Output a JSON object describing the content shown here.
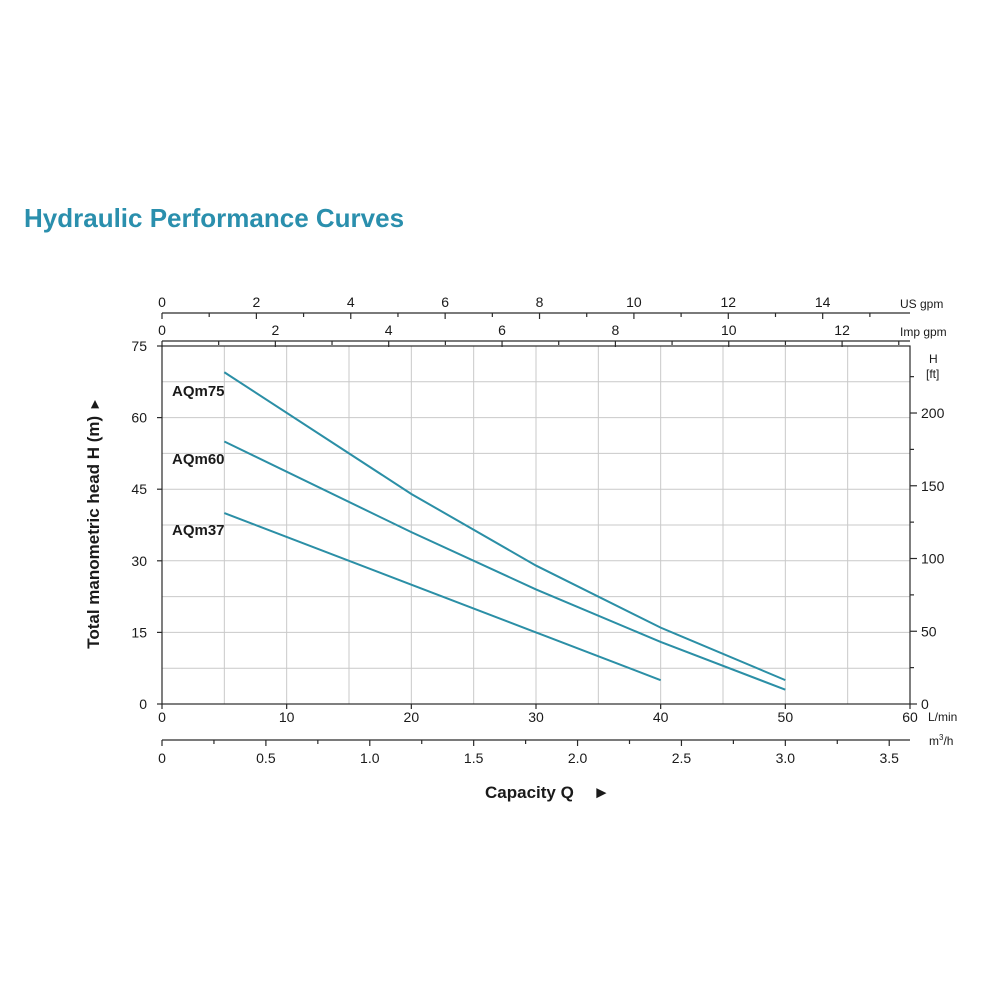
{
  "title": "Hydraulic Performance Curves",
  "colors": {
    "title": "#2a8fad",
    "curve": "#2b8fa6",
    "grid": "#c9c9c9",
    "axis": "#2a2a2a"
  },
  "chart_data": {
    "type": "line",
    "title": "",
    "xlabel": "Capacity Q",
    "ylabel": "Total manometric head H (m)",
    "xlabel_arrow": "►",
    "ylabel_arrow": "►",
    "xlim": [
      0,
      60
    ],
    "ylim": [
      0,
      75
    ],
    "grid": true,
    "legend": "none (curves labelled inline on the left)",
    "x_unit": "L/min",
    "x_ticks": [
      0,
      10,
      20,
      30,
      40,
      50,
      60
    ],
    "y_ticks": [
      0,
      15,
      30,
      45,
      60,
      75
    ],
    "secondary_axes": {
      "us_gpm": {
        "unit": "US gpm",
        "ticks": [
          0,
          2,
          4,
          6,
          8,
          10,
          12,
          14
        ]
      },
      "imp_gpm": {
        "unit": "Imp gpm",
        "ticks": [
          0,
          2,
          4,
          6,
          8,
          10,
          12
        ]
      },
      "m3h": {
        "unit_base": "m",
        "unit_sup": "3",
        "unit_tail": "/h",
        "ticks": [
          "0",
          "0.5",
          "1.0",
          "1.5",
          "2.0",
          "2.5",
          "3.0",
          "3.5"
        ]
      },
      "head_ft": {
        "unit_top": "H",
        "unit_bottom": "[ft]",
        "ticks": [
          0,
          50,
          100,
          150,
          200
        ]
      }
    },
    "series": [
      {
        "name": "AQm75",
        "x": [
          5,
          20,
          30,
          40,
          50
        ],
        "y": [
          69.5,
          44,
          29,
          16,
          5
        ]
      },
      {
        "name": "AQm60",
        "x": [
          5,
          20,
          30,
          40,
          50
        ],
        "y": [
          55,
          36,
          24,
          13,
          3
        ]
      },
      {
        "name": "AQm37",
        "x": [
          5,
          20,
          30,
          40
        ],
        "y": [
          40,
          25,
          15,
          5
        ]
      }
    ]
  }
}
